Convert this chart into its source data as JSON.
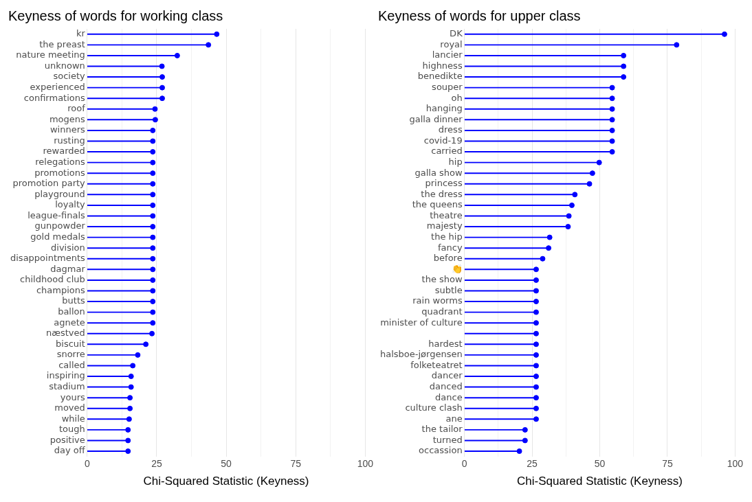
{
  "chart_data": [
    {
      "type": "lollipop",
      "orientation": "horizontal",
      "title": "Keyness of words for working class",
      "xlabel": "Chi-Squared Statistic (Keyness)",
      "categories": [
        "kr",
        "the preast",
        "nature meeting",
        "unknown",
        "society",
        "experienced",
        "confirmations",
        "roof",
        "mogens",
        "winners",
        "rusting",
        "rewarded",
        "relegations",
        "promotions",
        "promotion party",
        "playground",
        "loyalty",
        "league-finals",
        "gunpowder",
        "gold medals",
        "division",
        "disappointments",
        "dagmar",
        "childhood club",
        "champions",
        "butts",
        "ballon",
        "agnete",
        "næstved",
        "biscuit",
        "snorre",
        "called",
        "inspiring",
        "stadium",
        "yours",
        "moved",
        "while",
        "tough",
        "positive",
        "day off"
      ],
      "values": [
        46.6,
        43.6,
        32.4,
        26.9,
        27.0,
        27.0,
        27.0,
        24.4,
        24.5,
        23.6,
        23.6,
        23.6,
        23.6,
        23.6,
        23.6,
        23.6,
        23.6,
        23.6,
        23.6,
        23.6,
        23.6,
        23.6,
        23.6,
        23.6,
        23.6,
        23.6,
        23.6,
        23.6,
        23.3,
        21.1,
        18.2,
        16.4,
        15.8,
        15.8,
        15.4,
        15.4,
        15.1,
        14.7,
        14.7,
        14.7
      ],
      "color": "#0000ff",
      "marker": "circle",
      "xlim": [
        0,
        100
      ],
      "xticks": [
        0,
        {
          "value": 12.5,
          "label": null
        },
        25,
        {
          "value": 37.5,
          "label": null
        },
        50,
        {
          "value": 62.5,
          "label": null
        },
        75,
        {
          "value": 87.5,
          "label": null
        },
        100
      ],
      "grid": "x",
      "legend": false
    },
    {
      "type": "lollipop",
      "orientation": "horizontal",
      "title": "Keyness of words for upper class",
      "xlabel": "Chi-Squared Statistic (Keyness)",
      "categories": [
        "DK",
        "royal",
        "lancier",
        "highness",
        "benedikte",
        "souper",
        "oh",
        "hanging",
        "galla dinner",
        "dress",
        "covid-19",
        "carried",
        "hip",
        "galla show",
        "princess",
        "the dress",
        "the queens",
        "theatre",
        "majesty",
        "the hip",
        "fancy",
        "before",
        "👏",
        "the show",
        "subtle",
        "rain worms",
        "quadrant",
        "minister of culture",
        null,
        "hardest",
        "halsboe-jørgensen",
        "folketeatret",
        "dancer",
        "danced",
        "dance",
        "culture clash",
        "ane",
        "the tailor",
        "turned",
        "occassion"
      ],
      "values": [
        96.1,
        78.4,
        58.8,
        58.8,
        58.8,
        54.6,
        54.6,
        54.6,
        54.6,
        54.6,
        54.6,
        54.6,
        49.8,
        47.3,
        46.2,
        40.8,
        39.7,
        38.6,
        38.3,
        31.5,
        31.1,
        28.9,
        26.5,
        26.5,
        26.5,
        26.5,
        26.5,
        26.5,
        26.5,
        26.5,
        26.5,
        26.5,
        26.5,
        26.5,
        26.5,
        26.5,
        26.5,
        22.4,
        22.4,
        20.3
      ],
      "color": "#0000ff",
      "marker": "circle",
      "xlim": [
        0,
        100
      ],
      "xticks": [
        0,
        {
          "value": 12.5,
          "label": null
        },
        25,
        {
          "value": 37.5,
          "label": null
        },
        50,
        {
          "value": 62.5,
          "label": null
        },
        75,
        {
          "value": 87.5,
          "label": null
        },
        100
      ],
      "grid": "x",
      "legend": false
    }
  ]
}
